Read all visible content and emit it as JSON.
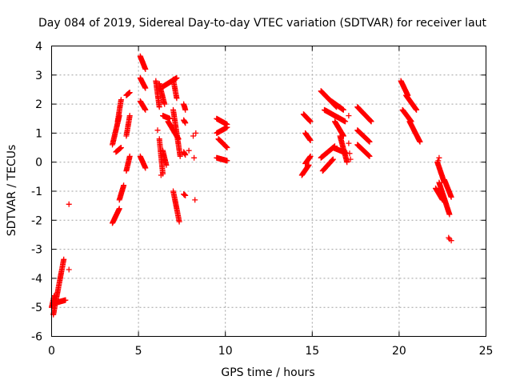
{
  "chart_data": {
    "type": "scatter",
    "title": "Day 084 of 2019, Sidereal Day-to-day VTEC variation (SDTVAR) for receiver laut",
    "xlabel": "GPS time / hours",
    "ylabel": "SDTVAR / TECUs",
    "xlim": [
      0,
      25
    ],
    "ylim": [
      -6,
      4
    ],
    "xticks": [
      0,
      5,
      10,
      15,
      20,
      25
    ],
    "yticks": [
      -6,
      -5,
      -4,
      -3,
      -2,
      -1,
      0,
      1,
      2,
      3,
      4
    ],
    "grid": true,
    "marker": "+",
    "color": "#ff0000",
    "series": [
      {
        "name": "laut",
        "segments": [
          {
            "x0": 0.0,
            "x1": 0.15,
            "y0": -5.0,
            "y1": -4.6
          },
          {
            "x0": 0.1,
            "x1": 0.7,
            "y0": -5.25,
            "y1": -3.35
          },
          {
            "x0": 0.2,
            "x1": 0.8,
            "y0": -4.85,
            "y1": -4.75
          },
          {
            "x0": 3.5,
            "x1": 3.9,
            "y0": -2.1,
            "y1": -1.6
          },
          {
            "x0": 3.9,
            "x1": 4.15,
            "y0": -1.3,
            "y1": -0.8
          },
          {
            "x0": 3.5,
            "x1": 3.9,
            "y0": 0.6,
            "y1": 1.6
          },
          {
            "x0": 3.8,
            "x1": 4.0,
            "y0": 1.4,
            "y1": 2.15
          },
          {
            "x0": 3.7,
            "x1": 4.0,
            "y0": 0.35,
            "y1": 0.5
          },
          {
            "x0": 4.3,
            "x1": 4.5,
            "y0": -0.3,
            "y1": 0.2
          },
          {
            "x0": 4.3,
            "x1": 4.5,
            "y0": 0.9,
            "y1": 1.6
          },
          {
            "x0": 4.3,
            "x1": 4.5,
            "y0": 2.3,
            "y1": 2.4
          },
          {
            "x0": 5.1,
            "x1": 5.4,
            "y0": 3.65,
            "y1": 3.2
          },
          {
            "x0": 5.1,
            "x1": 5.4,
            "y0": 2.9,
            "y1": 2.55
          },
          {
            "x0": 5.1,
            "x1": 5.4,
            "y0": 2.1,
            "y1": 1.8
          },
          {
            "x0": 5.1,
            "x1": 5.4,
            "y0": 0.2,
            "y1": -0.2
          },
          {
            "x0": 6.0,
            "x1": 6.2,
            "y0": 2.8,
            "y1": 1.9
          },
          {
            "x0": 6.2,
            "x1": 6.5,
            "y0": 2.7,
            "y1": 2.0
          },
          {
            "x0": 6.4,
            "x1": 7.2,
            "y0": 2.6,
            "y1": 2.9
          },
          {
            "x0": 7.0,
            "x1": 7.2,
            "y0": 2.85,
            "y1": 2.2
          },
          {
            "x0": 6.2,
            "x1": 6.4,
            "y0": 0.8,
            "y1": -0.4
          },
          {
            "x0": 6.4,
            "x1": 6.6,
            "y0": 0.4,
            "y1": -0.1
          },
          {
            "x0": 6.4,
            "x1": 6.8,
            "y0": 1.6,
            "y1": 1.5
          },
          {
            "x0": 6.7,
            "x1": 7.3,
            "y0": 1.4,
            "y1": 0.8
          },
          {
            "x0": 7.0,
            "x1": 7.4,
            "y0": 1.8,
            "y1": 0.2
          },
          {
            "x0": 7.0,
            "x1": 7.35,
            "y0": -1.0,
            "y1": -2.05
          },
          {
            "x0": 7.6,
            "x1": 7.7,
            "y0": 2.0,
            "y1": 1.8
          },
          {
            "x0": 7.6,
            "x1": 7.7,
            "y0": 1.45,
            "y1": 1.35
          },
          {
            "x0": 7.6,
            "x1": 7.7,
            "y0": 0.35,
            "y1": 0.25
          },
          {
            "x0": 7.6,
            "x1": 7.7,
            "y0": -1.1,
            "y1": -1.15
          },
          {
            "x0": 9.5,
            "x1": 10.1,
            "y0": 1.5,
            "y1": 1.3
          },
          {
            "x0": 9.5,
            "x1": 10.1,
            "y0": 1.0,
            "y1": 1.2
          },
          {
            "x0": 9.6,
            "x1": 10.1,
            "y0": 0.8,
            "y1": 0.5
          },
          {
            "x0": 9.5,
            "x1": 10.1,
            "y0": 0.15,
            "y1": 0.05
          },
          {
            "x0": 14.4,
            "x1": 14.8,
            "y0": -0.45,
            "y1": -0.1
          },
          {
            "x0": 14.6,
            "x1": 14.9,
            "y0": -0.05,
            "y1": 0.2
          },
          {
            "x0": 14.5,
            "x1": 14.9,
            "y0": 1.65,
            "y1": 1.4
          },
          {
            "x0": 14.6,
            "x1": 14.9,
            "y0": 1.0,
            "y1": 0.75
          },
          {
            "x0": 15.5,
            "x1": 16.4,
            "y0": 2.45,
            "y1": 1.9
          },
          {
            "x0": 16.1,
            "x1": 16.8,
            "y0": 2.1,
            "y1": 1.8
          },
          {
            "x0": 15.7,
            "x1": 16.9,
            "y0": 1.8,
            "y1": 1.4
          },
          {
            "x0": 16.3,
            "x1": 16.8,
            "y0": 1.4,
            "y1": 0.9
          },
          {
            "x0": 15.5,
            "x1": 16.3,
            "y0": 0.15,
            "y1": 0.55
          },
          {
            "x0": 15.6,
            "x1": 16.2,
            "y0": -0.3,
            "y1": 0.1
          },
          {
            "x0": 16.2,
            "x1": 17.0,
            "y0": 0.5,
            "y1": 0.3
          },
          {
            "x0": 16.6,
            "x1": 17.0,
            "y0": 0.9,
            "y1": 0.0
          },
          {
            "x0": 17.6,
            "x1": 18.4,
            "y0": 1.9,
            "y1": 1.4
          },
          {
            "x0": 17.6,
            "x1": 18.3,
            "y0": 1.1,
            "y1": 0.7
          },
          {
            "x0": 17.6,
            "x1": 18.3,
            "y0": 0.6,
            "y1": 0.2
          },
          {
            "x0": 20.1,
            "x1": 20.5,
            "y0": 2.8,
            "y1": 2.3
          },
          {
            "x0": 20.4,
            "x1": 21.0,
            "y0": 2.3,
            "y1": 1.8
          },
          {
            "x0": 20.2,
            "x1": 20.7,
            "y0": 1.8,
            "y1": 1.4
          },
          {
            "x0": 20.6,
            "x1": 21.2,
            "y0": 1.4,
            "y1": 0.7
          },
          {
            "x0": 22.2,
            "x1": 22.6,
            "y0": 0.0,
            "y1": -0.7
          },
          {
            "x0": 22.3,
            "x1": 22.9,
            "y0": -0.7,
            "y1": -1.8
          },
          {
            "x0": 22.6,
            "x1": 23.0,
            "y0": -0.6,
            "y1": -1.2
          },
          {
            "x0": 22.1,
            "x1": 22.5,
            "y0": -0.9,
            "y1": -1.3
          }
        ],
        "points": [
          [
            1.0,
            -1.45
          ],
          [
            1.0,
            -3.7
          ],
          [
            6.1,
            1.1
          ],
          [
            6.3,
            -0.45
          ],
          [
            7.9,
            0.4
          ],
          [
            8.15,
            0.9
          ],
          [
            8.2,
            0.15
          ],
          [
            8.25,
            -1.3
          ],
          [
            8.3,
            1.0
          ],
          [
            17.1,
            1.6
          ],
          [
            17.1,
            0.65
          ],
          [
            17.15,
            0.3
          ],
          [
            17.2,
            0.1
          ],
          [
            22.25,
            0.05
          ],
          [
            22.3,
            0.15
          ],
          [
            22.9,
            -2.65
          ],
          [
            23.0,
            -2.7
          ],
          [
            22.85,
            -2.6
          ]
        ]
      }
    ]
  }
}
